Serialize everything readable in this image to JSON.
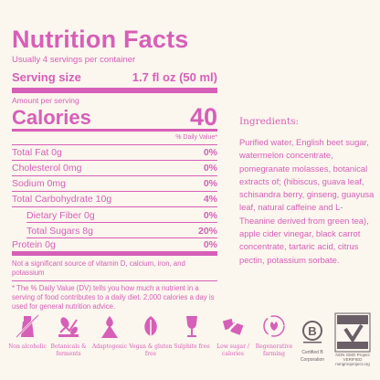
{
  "nutrition": {
    "title": "Nutrition Facts",
    "servings": "Usually 4 servings per container",
    "serving_size_label": "Serving size",
    "serving_size_value": "1.7 fl oz (50 ml)",
    "amount_per_serving": "Amount per serving",
    "calories_label": "Calories",
    "calories_value": "40",
    "dv_header": "% Daily Value*",
    "rows": [
      {
        "name": "Total Fat 0g",
        "pct": "0%"
      },
      {
        "name": "Cholesterol 0mg",
        "pct": "0%"
      },
      {
        "name": "Sodium 0mg",
        "pct": "0%"
      },
      {
        "name": "Total Carbohydrate 10g",
        "pct": "4%"
      },
      {
        "name": "Dietary Fiber 0g",
        "pct": "0%"
      },
      {
        "name": "Total Sugars 8g",
        "pct": "20%"
      },
      {
        "name": "Protein 0g",
        "pct": "0%"
      }
    ],
    "note": "Not a significant source of vitamin D, calcium, iron, and potassium",
    "footnote": "* The % Daily Value (DV) tells you how much a nutrient in a serving of food contributes to a daily diet. 2,000 calories a day is used for general nutrition advice."
  },
  "ingredients": {
    "title": "Ingredients:",
    "text": "Purified water, English beet sugar, watermelon concentrate, pomegranate molasses, botanical extracts of; (hibiscus, guava leaf, schisandra berry, ginseng, guayusa leaf, natural caffeine and L-Theanine derived from green tea), apple cider vinegar, black carrot concentrate, tartaric acid, citrus pectin, potassium sorbate."
  },
  "badges": [
    {
      "icon": "non-alcoholic-icon",
      "label": "Non alcoholic"
    },
    {
      "icon": "botanicals-icon",
      "label": "Botanicals & ferments"
    },
    {
      "icon": "adaptogenic-icon",
      "label": "Adaptogenic"
    },
    {
      "icon": "vegan-icon",
      "label": "Vegan & gluten free"
    },
    {
      "icon": "sulphite-free-icon",
      "label": "Sulphite free"
    },
    {
      "icon": "low-sugar-icon",
      "label": "Low sugar / calories"
    },
    {
      "icon": "regenerative-farming-icon",
      "label": "Regenerative farming"
    },
    {
      "icon": "certified-b-corp-icon",
      "label": "Certified B Corporation"
    },
    {
      "icon": "non-gmo-icon",
      "label": "NON GMO Project VERIFIED nongmoproject.org"
    }
  ],
  "colors": {
    "accent": "#d65fb8",
    "background": "#fbf6ee",
    "text_dark": "#6a5f66"
  }
}
